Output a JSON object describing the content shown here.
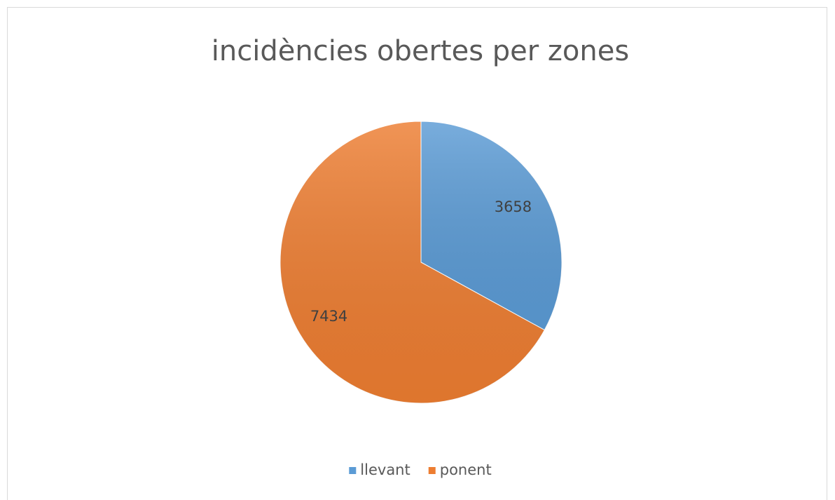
{
  "chart_data": {
    "type": "pie",
    "title": "incidències obertes per zones",
    "categories": [
      "llevant",
      "ponent"
    ],
    "values": [
      3658,
      7434
    ],
    "colors": [
      "#5b9bd5",
      "#ed7d31"
    ],
    "legend": "bottom"
  }
}
